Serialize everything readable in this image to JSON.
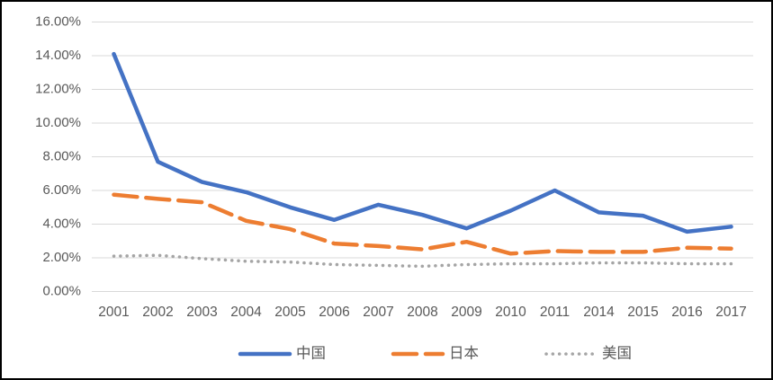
{
  "frame": {
    "background": "#ffffff",
    "border_color": "#000000"
  },
  "chart_data": {
    "type": "line",
    "title": "",
    "xlabel": "",
    "ylabel": "",
    "categories": [
      "2001",
      "2002",
      "2003",
      "2004",
      "2005",
      "2006",
      "2007",
      "2008",
      "2009",
      "2010",
      "2011",
      "2014",
      "2015",
      "2016",
      "2017"
    ],
    "series": [
      {
        "name": "中国",
        "color": "#4472C4",
        "line_style": "solid",
        "values": [
          14.1,
          7.7,
          6.5,
          5.9,
          5.0,
          4.25,
          5.15,
          4.55,
          3.75,
          4.8,
          6.0,
          4.7,
          4.5,
          3.55,
          3.85
        ]
      },
      {
        "name": "日本",
        "color": "#ED7D31",
        "line_style": "dashed",
        "values": [
          5.75,
          5.5,
          5.3,
          4.2,
          3.7,
          2.85,
          2.7,
          2.5,
          2.95,
          2.25,
          2.4,
          2.35,
          2.35,
          2.6,
          2.55
        ]
      },
      {
        "name": "美国",
        "color": "#A5A5A5",
        "line_style": "dotted",
        "values": [
          2.1,
          2.15,
          1.95,
          1.8,
          1.75,
          1.6,
          1.55,
          1.5,
          1.6,
          1.65,
          1.65,
          1.7,
          1.7,
          1.65,
          1.65
        ]
      }
    ],
    "ylim": [
      0,
      16
    ],
    "ytick_step": 2,
    "ytick_labels": [
      "0.00%",
      "2.00%",
      "4.00%",
      "6.00%",
      "8.00%",
      "10.00%",
      "12.00%",
      "14.00%",
      "16.00%"
    ],
    "grid": true,
    "gridline_color": "#D9D9D9",
    "tick_text_color": "#595959",
    "legend_position": "bottom",
    "legend_labels": [
      "中国",
      "日本",
      "美国"
    ]
  }
}
